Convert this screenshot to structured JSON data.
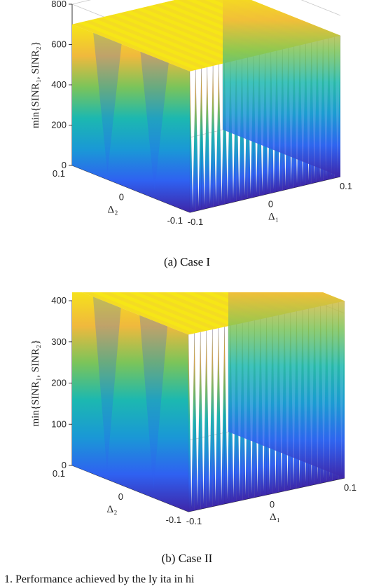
{
  "chart_data": [
    {
      "type": "surface3d",
      "panel_id": "a",
      "caption": "(a)  Case  I",
      "zlabel": "min{SINR₁, SINR₂}",
      "xlabel": "Δ₁",
      "ylabel": "Δ₂",
      "xlim": [
        -0.1,
        0.1
      ],
      "ylim": [
        -0.1,
        0.1
      ],
      "zlim": [
        0,
        800
      ],
      "x_ticks": [
        "-0.1",
        "0",
        "0.1"
      ],
      "y_ticks": [
        "0.1",
        "0",
        "-0.1"
      ],
      "z_ticks": [
        "0",
        "200",
        "400",
        "600",
        "800"
      ],
      "peak_value": 700,
      "trough_value": 0,
      "oscillation_periods_x": 26,
      "colormap": [
        "#3e26a8",
        "#2f61f1",
        "#1a98d6",
        "#1cb8b0",
        "#7bc45a",
        "#f0b93d",
        "#f6e617"
      ]
    },
    {
      "type": "surface3d",
      "panel_id": "b",
      "caption": "(b)  Case  II",
      "zlabel": "min{SINR₁, SINR₂}",
      "xlabel": "Δ₁",
      "ylabel": "Δ₂",
      "xlim": [
        -0.1,
        0.1
      ],
      "ylim": [
        -0.1,
        0.1
      ],
      "zlim": [
        0,
        400
      ],
      "x_ticks": [
        "-0.1",
        "0",
        "0.1"
      ],
      "y_ticks": [
        "0.1",
        "0",
        "-0.1"
      ],
      "z_ticks": [
        "0",
        "100",
        "200",
        "300",
        "400"
      ],
      "peak_value": 430,
      "trough_value": 0,
      "oscillation_periods_x": 26,
      "colormap": [
        "#3e26a8",
        "#2f61f1",
        "#1a98d6",
        "#1cb8b0",
        "#7bc45a",
        "#f0b93d",
        "#f6e617"
      ]
    }
  ],
  "figure_text": "1.   Performance achieved by the          ly      ita    in  hi"
}
